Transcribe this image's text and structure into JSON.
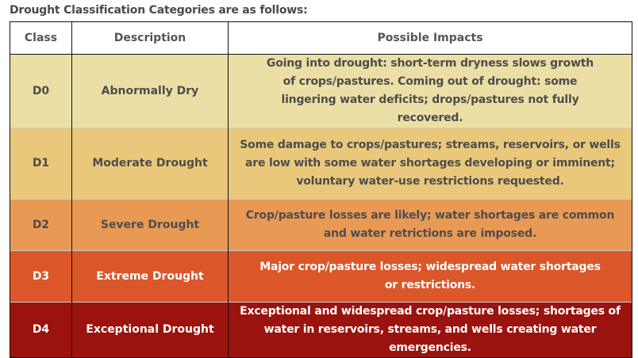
{
  "title": "Drought Classification Categories are as follows:",
  "headers": {
    "class": "Class",
    "description": "Description",
    "impacts": "Possible Impacts"
  },
  "rows": [
    {
      "class": "D0",
      "description": "Abnormally Dry",
      "impacts": "Going into drought: short-term dryness slows growth of crops/pastures. Coming out of drought: some lingering water deficits; drops/pastures not fully recovered.",
      "color": "#ebdfa5"
    },
    {
      "class": "D1",
      "description": "Moderate Drought",
      "impacts": "Some damage to crops/pastures; streams, reservoirs, or wells are low with some water shortages developing or imminent; voluntary water-use restrictions requested.",
      "color": "#e9c87b"
    },
    {
      "class": "D2",
      "description": "Severe Drought",
      "impacts": "Crop/pasture losses are likely; water shortages are common and water retrictions are imposed.",
      "color": "#e89a55"
    },
    {
      "class": "D3",
      "description": "Extreme Drought",
      "impacts": "Major crop/pasture losses; widespread water shortages or restrictions.",
      "color": "#db5628"
    },
    {
      "class": "D4",
      "description": "Exceptional Drought",
      "impacts": "Exceptional and widespread crop/pasture losses; shortages of water in reservoirs, streams, and wells creating water emergencies.",
      "color": "#9b130e"
    }
  ]
}
